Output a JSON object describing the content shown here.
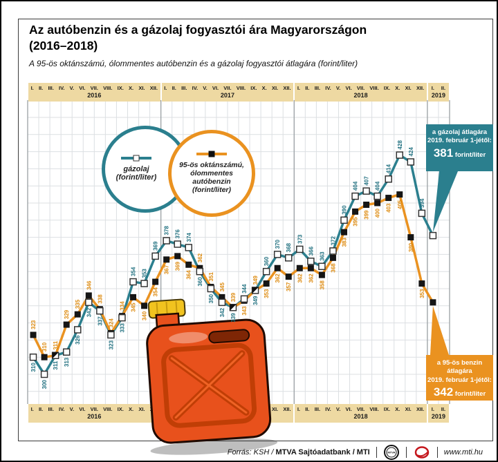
{
  "header": {
    "title_line1": "Az autóbenzin és a gázolaj fogyasztói ára Magyarországon",
    "title_line2": "(2016–2018)",
    "subtitle": "A 95-ös oktánszámú, ólommentes autóbenzin és a gázolaj fogyasztói átlagára (forint/liter)"
  },
  "legend": {
    "diesel": {
      "lines": [
        "gázolaj",
        "(forint/liter)"
      ]
    },
    "petrol": {
      "lines": [
        "95-ös oktánszámú,",
        "ólommentes",
        "autóbenzin",
        "(forint/liter)"
      ]
    }
  },
  "callouts": {
    "diesel": {
      "line1": "a gázolaj átlagára",
      "line2": "2019. február 1-jétől:",
      "value": "381",
      "unit": "forint/liter",
      "color": "#2b7f8e"
    },
    "petrol": {
      "line1": "a 95-ös benzin átlagára",
      "line2": "2019. február 1-jétől:",
      "value": "342",
      "unit": "forint/liter",
      "color": "#ea9220"
    }
  },
  "footer": {
    "source_italic": "Forrás: KSH /",
    "source_bold": "MTVA Sajtóadatbank",
    "source_end": "/ MTI",
    "mtva_logo_text": "MTVA",
    "website": "www.mti.hu"
  },
  "chart_data": {
    "type": "line",
    "title": "Az autóbenzin és a gázolaj fogyasztói ára Magyarországon (2016–2018)",
    "ylabel": "forint/liter",
    "ylim": [
      280,
      440
    ],
    "grid": true,
    "legend_position": "top-left-circles",
    "x_groups": [
      {
        "year": "2016",
        "months": [
          "I.",
          "II.",
          "III.",
          "IV.",
          "V.",
          "VI.",
          "VII.",
          "VIII.",
          "IX.",
          "X.",
          "XI.",
          "XII."
        ]
      },
      {
        "year": "2017",
        "months": [
          "I.",
          "II.",
          "III.",
          "IV.",
          "V.",
          "VI.",
          "VII.",
          "VIII.",
          "IX.",
          "X.",
          "XI.",
          "XII."
        ]
      },
      {
        "year": "2018",
        "months": [
          "I.",
          "II.",
          "III.",
          "IV.",
          "V.",
          "VI.",
          "VII.",
          "VIII.",
          "IX.",
          "X.",
          "XI.",
          "XII."
        ]
      },
      {
        "year": "2019",
        "months": [
          "I.",
          "II."
        ]
      }
    ],
    "series": [
      {
        "name": "gázolaj (forint/liter)",
        "color": "#2b7f8e",
        "label_color": "#1d6e7e",
        "marker": "white-square",
        "values": [
          310,
          300,
          311,
          313,
          326,
          342,
          337,
          323,
          333,
          354,
          353,
          369,
          378,
          376,
          374,
          360,
          350,
          342,
          339,
          344,
          349,
          360,
          370,
          368,
          373,
          366,
          363,
          372,
          390,
          404,
          407,
          404,
          414,
          428,
          424,
          394,
          381,
          null
        ]
      },
      {
        "name": "95-ös oktánszámú, ólommentes autóbenzin (forint/liter)",
        "color": "#ea9220",
        "label_color": "#dd8a0e",
        "marker": "black-square",
        "values": [
          323,
          310,
          311,
          329,
          335,
          346,
          338,
          324,
          334,
          345,
          340,
          354,
          367,
          369,
          364,
          362,
          351,
          345,
          339,
          343,
          349,
          353,
          362,
          357,
          362,
          362,
          358,
          368,
          383,
          395,
          399,
          400,
          403,
          405,
          380,
          353,
          342,
          null
        ]
      }
    ],
    "unlabeled_indices": [
      36
    ]
  }
}
